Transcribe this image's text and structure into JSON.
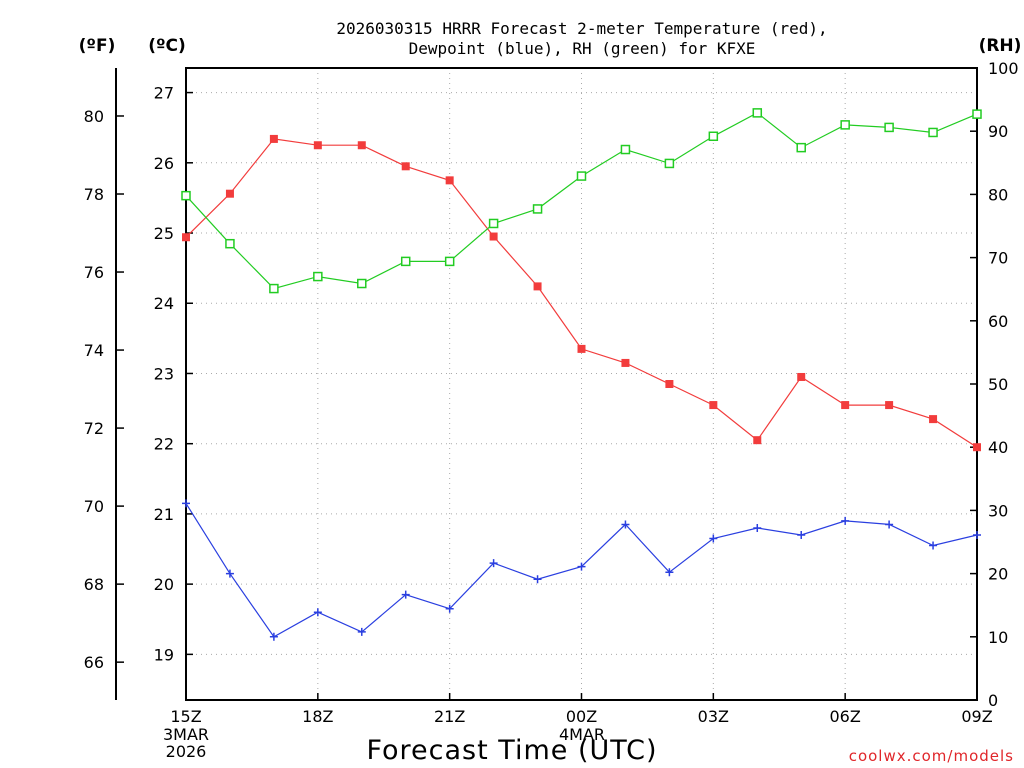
{
  "chart_data": {
    "type": "line",
    "title_line1": "2026030315 HRRR Forecast 2-meter Temperature (red),",
    "title_line2": "Dewpoint (blue), RH (green) for KFXE",
    "unit_f": "(ºF)",
    "unit_c": "(ºC)",
    "unit_rh": "(RH)",
    "xlabel": "Forecast Time (UTC)",
    "credit": "coolwx.com/models",
    "x_hours": [
      0,
      1,
      2,
      3,
      4,
      5,
      6,
      7,
      8,
      9,
      10,
      11,
      12,
      13,
      14,
      15,
      16,
      17,
      18
    ],
    "x_tick_hours": [
      0,
      3,
      6,
      9,
      12,
      15,
      18
    ],
    "x_tick_labels": [
      "15Z",
      "18Z",
      "21Z",
      "00Z",
      "03Z",
      "06Z",
      "09Z"
    ],
    "x_start_date": [
      "3MAR",
      "2026"
    ],
    "x_day_label": "4MAR",
    "celsius_axis": {
      "min": 18.35,
      "max": 27.35,
      "ticks": [
        "19",
        "20",
        "21",
        "22",
        "23",
        "24",
        "25",
        "26",
        "27"
      ]
    },
    "fahrenheit_axis": {
      "ticks": [
        "66",
        "68",
        "70",
        "72",
        "74",
        "76",
        "78",
        "80"
      ]
    },
    "rh_axis": {
      "min": 0,
      "max": 100,
      "ticks": [
        "0",
        "10",
        "20",
        "30",
        "40",
        "50",
        "60",
        "70",
        "80",
        "90",
        "100"
      ]
    },
    "series": [
      {
        "name": "2-meter Temperature",
        "units": "°C",
        "color": "#f23c3c",
        "marker": "filled-square",
        "values": [
          24.94,
          25.56,
          26.34,
          26.25,
          26.25,
          25.95,
          25.75,
          24.95,
          24.24,
          23.35,
          23.15,
          22.85,
          22.55,
          22.05,
          22.95,
          22.55,
          22.55,
          22.35,
          21.95
        ]
      },
      {
        "name": "Dewpoint",
        "units": "°C",
        "color": "#2a3fe0",
        "marker": "plus",
        "values": [
          21.15,
          20.15,
          19.25,
          19.6,
          19.32,
          19.85,
          19.65,
          20.3,
          20.07,
          20.25,
          20.85,
          20.17,
          20.65,
          20.8,
          20.7,
          20.9,
          20.85,
          20.55,
          20.7
        ]
      },
      {
        "name": "Relative Humidity",
        "units": "%",
        "color": "#22cc22",
        "marker": "open-square",
        "values": [
          79.8,
          72.2,
          65.1,
          67.0,
          65.9,
          69.4,
          69.4,
          75.4,
          77.7,
          82.9,
          87.1,
          84.9,
          89.2,
          92.9,
          87.4,
          91.0,
          90.6,
          89.8,
          92.7
        ]
      }
    ]
  }
}
